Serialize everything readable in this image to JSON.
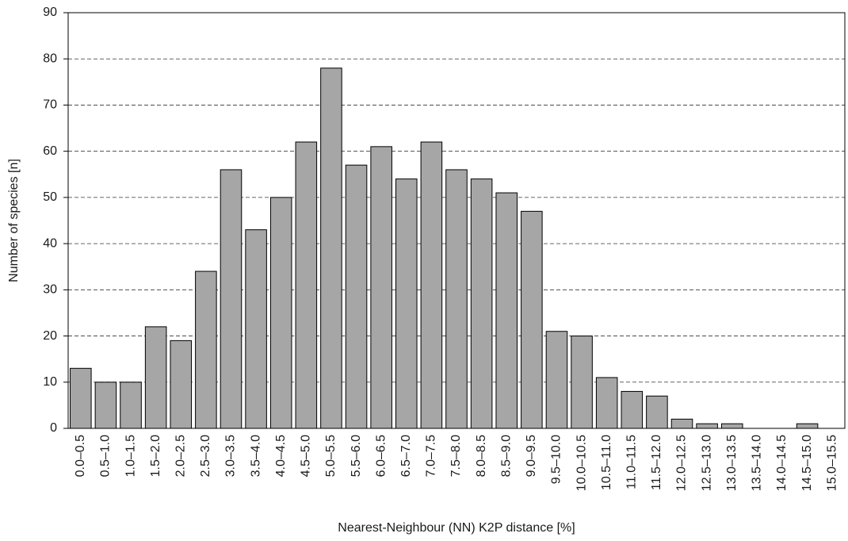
{
  "chart_data": {
    "type": "bar",
    "x_label": "Nearest-Neighbour (NN) K2P distance [%]",
    "y_label": "Number of species [n]",
    "categories": [
      "0.0–0.5",
      "0.5–1.0",
      "1.0–1.5",
      "1.5–2.0",
      "2.0–2.5",
      "2.5–3.0",
      "3.0–3.5",
      "3.5–4.0",
      "4.0–4.5",
      "4.5–5.0",
      "5.0–5.5",
      "5.5–6.0",
      "6.0–6.5",
      "6.5–7.0",
      "7.0–7.5",
      "7.5–8.0",
      "8.0–8.5",
      "8.5–9.0",
      "9.0–9.5",
      "9.5–10.0",
      "10.0–10.5",
      "10.5–11.0",
      "11.0–11.5",
      "11.5–12.0",
      "12.0–12.5",
      "12.5–13.0",
      "13.0–13.5",
      "13.5–14.0",
      "14.0–14.5",
      "14.5–15.0",
      "15.0–15.5"
    ],
    "values": [
      13,
      10,
      10,
      22,
      19,
      34,
      56,
      43,
      50,
      62,
      78,
      57,
      61,
      54,
      62,
      56,
      54,
      51,
      47,
      21,
      20,
      11,
      8,
      7,
      2,
      1,
      1,
      0,
      0,
      1,
      0
    ],
    "color": "#a6a6a6",
    "ylim": [
      0,
      90
    ],
    "yticks": [
      0,
      10,
      20,
      30,
      40,
      50,
      60,
      70,
      80,
      90
    ],
    "grid": true
  }
}
